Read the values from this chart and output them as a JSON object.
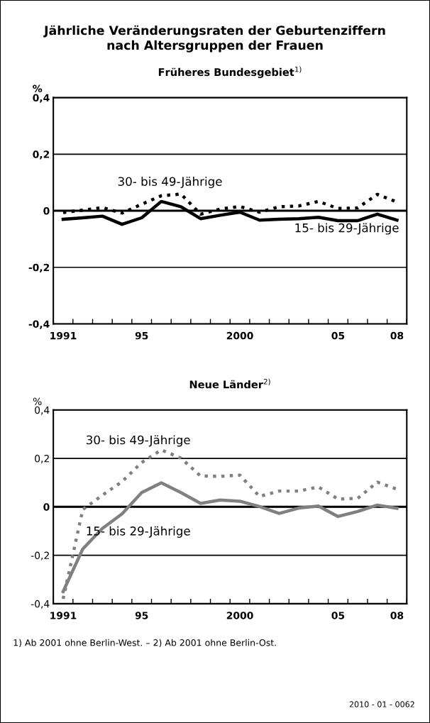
{
  "chart_data": [
    {
      "type": "line",
      "title": "Jährliche Veränderungsraten der Geburtenziffern\nnach Altersgruppen der Frauen",
      "subtitle": "Früheres Bundesgebiet$^{1)}$",
      "ylabel": "%",
      "x": [
        1991,
        1992,
        1993,
        1994,
        1995,
        1996,
        1997,
        1998,
        1999,
        2000,
        2001,
        2002,
        2003,
        2004,
        2005,
        2006,
        2007,
        2008
      ],
      "series": [
        {
          "name": "15- bis 29-Jährige",
          "color": "#000000",
          "line_style": "solid",
          "values": [
            -0.03,
            -0.025,
            -0.019,
            -0.048,
            -0.025,
            0.033,
            0.014,
            -0.028,
            -0.016,
            -0.005,
            -0.033,
            -0.03,
            -0.028,
            -0.023,
            -0.035,
            -0.035,
            -0.012,
            -0.033
          ]
        },
        {
          "name": "30- bis 49-Jährige",
          "color": "#000000",
          "line_style": "dotted",
          "values": [
            -0.006,
            0.002,
            0.011,
            -0.008,
            0.023,
            0.053,
            0.059,
            -0.012,
            0.006,
            0.015,
            -0.005,
            0.014,
            0.017,
            0.033,
            0.008,
            0.01,
            0.058,
            0.031
          ]
        }
      ],
      "xlim": [
        1990.5,
        2008.5
      ],
      "ylim": [
        -0.4,
        0.4
      ],
      "xticks": [
        {
          "value": 1990.5,
          "label": null
        },
        {
          "value": 1991,
          "label": "1991"
        },
        {
          "value": 1991.5,
          "label": null
        },
        {
          "value": 1992.5,
          "label": null
        },
        {
          "value": 1993.5,
          "label": null
        },
        {
          "value": 1994.5,
          "label": null
        },
        {
          "value": 1995,
          "label": "95"
        },
        {
          "value": 1995.5,
          "label": null
        },
        {
          "value": 1996.5,
          "label": null
        },
        {
          "value": 1997.5,
          "label": null
        },
        {
          "value": 1998.5,
          "label": null
        },
        {
          "value": 1999.5,
          "label": null
        },
        {
          "value": 2000,
          "label": "2000"
        },
        {
          "value": 2000.5,
          "label": null
        },
        {
          "value": 2001.5,
          "label": null
        },
        {
          "value": 2002.5,
          "label": null
        },
        {
          "value": 2003.5,
          "label": null
        },
        {
          "value": 2004.5,
          "label": null
        },
        {
          "value": 2005,
          "label": "05"
        },
        {
          "value": 2005.5,
          "label": null
        },
        {
          "value": 2006.5,
          "label": null
        },
        {
          "value": 2007.5,
          "label": null
        },
        {
          "value": 2008,
          "label": "08"
        },
        {
          "value": 2008.5,
          "label": null
        }
      ],
      "yticks": [
        {
          "value": -0.4,
          "label": "-0,4"
        },
        {
          "value": -0.2,
          "label": "-0,2"
        },
        {
          "value": 0,
          "label": "0"
        },
        {
          "value": 0.2,
          "label": "0,2"
        },
        {
          "value": 0.4,
          "label": "0,4"
        }
      ],
      "ref_lines": [
        {
          "axis": "y",
          "value": 0,
          "color": "#000000"
        }
      ],
      "grid": "y",
      "legend": false
    },
    {
      "type": "line",
      "title": "Neue Länder$^{2)}$",
      "ylabel": "%",
      "x": [
        1991,
        1992,
        1993,
        1994,
        1995,
        1996,
        1997,
        1998,
        1999,
        2000,
        2001,
        2002,
        2003,
        2004,
        2005,
        2006,
        2007,
        2008
      ],
      "series": [
        {
          "name": "15- bis 29-Jährige",
          "color": "#808080",
          "line_style": "solid",
          "values": [
            -0.35,
            -0.174,
            -0.089,
            -0.029,
            0.059,
            0.099,
            0.059,
            0.014,
            0.028,
            0.023,
            0.001,
            -0.027,
            -0.005,
            0.003,
            -0.04,
            -0.019,
            0.007,
            -0.006
          ]
        },
        {
          "name": "30- bis 49-Jährige",
          "color": "#808080",
          "line_style": "dotted",
          "values": [
            -0.38,
            -0.011,
            0.048,
            0.104,
            0.183,
            0.235,
            0.201,
            0.127,
            0.126,
            0.131,
            0.043,
            0.065,
            0.065,
            0.082,
            0.032,
            0.035,
            0.102,
            0.073
          ]
        }
      ],
      "annotations": [
        "1) Ab 2001 ohne Berlin-West. – 2) Ab 2001 ohne Berlin-Ost.",
        "2010 - 01 - 0062"
      ],
      "xlim": [
        1990.5,
        2008.5
      ],
      "ylim": [
        -0.4,
        0.4
      ],
      "xticks": [
        {
          "value": 1990.5,
          "label": null
        },
        {
          "value": 1991,
          "label": "1991"
        },
        {
          "value": 1991.5,
          "label": null
        },
        {
          "value": 1992.5,
          "label": null
        },
        {
          "value": 1993.5,
          "label": null
        },
        {
          "value": 1994.5,
          "label": null
        },
        {
          "value": 1995,
          "label": "95"
        },
        {
          "value": 1995.5,
          "label": null
        },
        {
          "value": 1996.5,
          "label": null
        },
        {
          "value": 1997.5,
          "label": null
        },
        {
          "value": 1998.5,
          "label": null
        },
        {
          "value": 1999.5,
          "label": null
        },
        {
          "value": 2000,
          "label": "2000"
        },
        {
          "value": 2000.5,
          "label": null
        },
        {
          "value": 2001.5,
          "label": null
        },
        {
          "value": 2002.5,
          "label": null
        },
        {
          "value": 2003.5,
          "label": null
        },
        {
          "value": 2004.5,
          "label": null
        },
        {
          "value": 2005,
          "label": "05"
        },
        {
          "value": 2005.5,
          "label": null
        },
        {
          "value": 2006.5,
          "label": null
        },
        {
          "value": 2007.5,
          "label": null
        },
        {
          "value": 2008,
          "label": "08"
        },
        {
          "value": 2008.5,
          "label": null
        }
      ],
      "yticks": [
        {
          "value": -0.4,
          "label": "-0,4"
        },
        {
          "value": -0.2,
          "label": "-0,2"
        },
        {
          "value": 0,
          "label": "0"
        },
        {
          "value": 0.2,
          "label": "0,2"
        },
        {
          "value": 0.4,
          "label": "0,4"
        }
      ],
      "ref_lines": [
        {
          "axis": "y",
          "value": 0,
          "color": "#000000"
        }
      ],
      "grid": "y",
      "legend": false
    }
  ]
}
